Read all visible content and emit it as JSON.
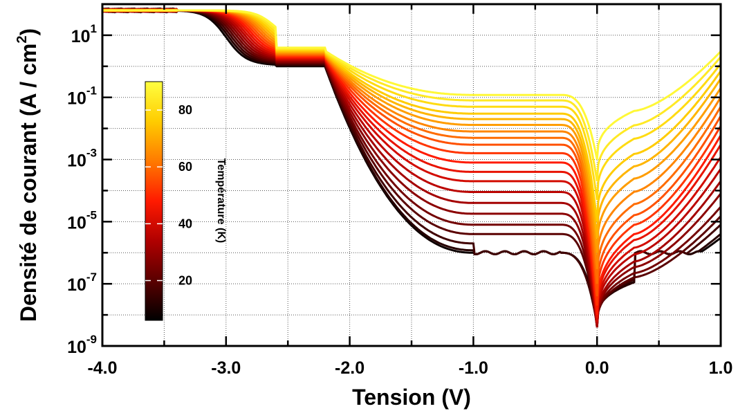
{
  "chart_data": {
    "type": "line",
    "xlabel": "Tension (V)",
    "ylabel_main": "Densité de courant (A / cm",
    "ylabel_sup": "2",
    "ylabel_close": ")",
    "xlim": [
      -4.0,
      1.0
    ],
    "ylim": [
      1e-09,
      100
    ],
    "y_scale": "log",
    "grid": true,
    "x_ticks": [
      -4.0,
      -3.0,
      -2.0,
      -1.0,
      0.0,
      1.0
    ],
    "x_tick_labels": [
      "-4.0",
      "-3.0",
      "-2.0",
      "-1.0",
      "0.0",
      "1.0"
    ],
    "y_ticks": [
      {
        "value": 1e-09,
        "base": "10",
        "exp": "-9"
      },
      {
        "value": 1e-07,
        "base": "10",
        "exp": "-7"
      },
      {
        "value": 1e-05,
        "base": "10",
        "exp": "-5"
      },
      {
        "value": 0.001,
        "base": "10",
        "exp": "-3"
      },
      {
        "value": 0.1,
        "base": "10",
        "exp": "-1"
      },
      {
        "value": 10,
        "base": "10",
        "exp": "1"
      }
    ],
    "colorbar": {
      "title": "Température (K)",
      "min": 6,
      "max": 90,
      "ticks": [
        20,
        40,
        60,
        80
      ],
      "tick_labels": [
        "20",
        "40",
        "60",
        "80"
      ],
      "colormap": [
        "#000000",
        "#5a0000",
        "#b00000",
        "#ff1a00",
        "#ff7a00",
        "#ffcc00",
        "#ffff40"
      ]
    },
    "series_temperatures": [
      8,
      12,
      16,
      20,
      24,
      28,
      32,
      36,
      40,
      44,
      48,
      52,
      56,
      60,
      64,
      68,
      72,
      76,
      80,
      84,
      88
    ],
    "series_min_y_at_0V": [
      8e-09,
      6e-09,
      5e-09,
      4e-09,
      4e-09,
      4e-09,
      4e-09,
      5e-09,
      6e-09,
      8e-09,
      1e-08,
      2e-08,
      4e-08,
      1e-07,
      3e-07,
      1e-06,
      3e-06,
      1e-05,
      5e-05,
      0.0002,
      0.001
    ],
    "series_y_at_minus1V": [
      1e-06,
      1.2e-06,
      2e-06,
      4e-06,
      8e-06,
      1.8e-05,
      4e-05,
      9e-05,
      0.0002,
      0.0004,
      0.0008,
      0.0016,
      0.003,
      0.005,
      0.008,
      0.013,
      0.02,
      0.03,
      0.05,
      0.08,
      0.12
    ],
    "series_y_at_plus1V": [
      3e-06,
      4e-06,
      8e-06,
      1.5e-05,
      3e-05,
      8e-05,
      0.0002,
      0.0005,
      0.0012,
      0.003,
      0.006,
      0.012,
      0.025,
      0.05,
      0.1,
      0.2,
      0.4,
      0.7,
      1.2,
      2,
      3
    ]
  }
}
